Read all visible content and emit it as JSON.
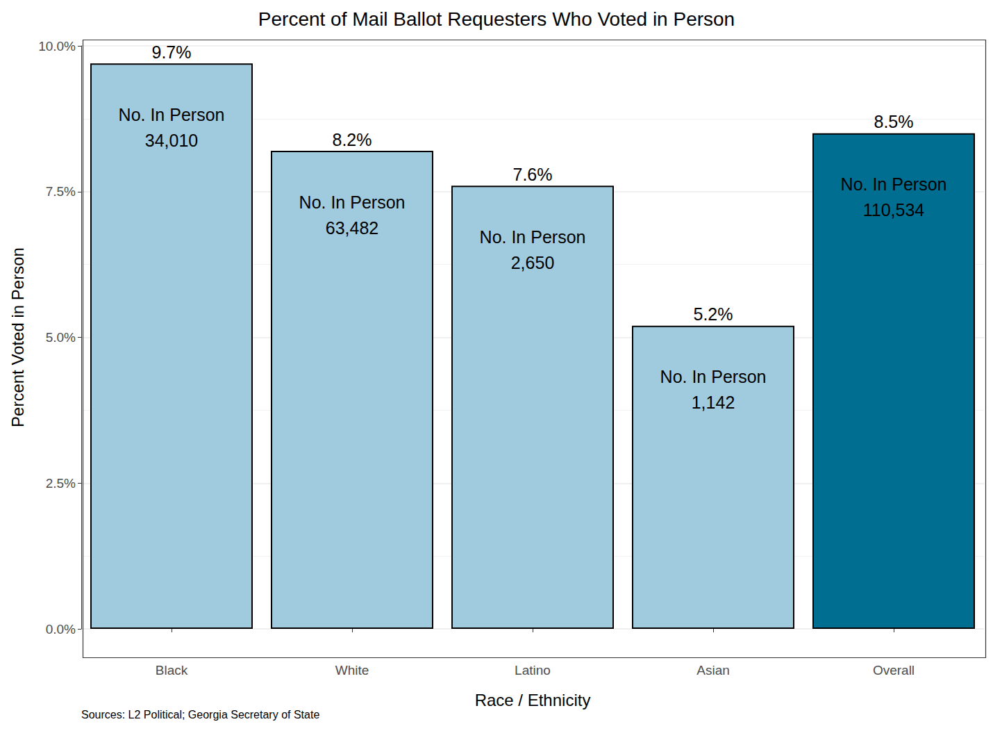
{
  "chart_data": {
    "type": "bar",
    "title": "Percent of Mail Ballot Requesters Who Voted in Person",
    "xlabel": "Race / Ethnicity",
    "ylabel": "Percent Voted in Person",
    "source": "Sources: L2 Political; Georgia Secretary of State",
    "categories": [
      "Black",
      "White",
      "Latino",
      "Asian",
      "Overall"
    ],
    "values": [
      9.7,
      8.2,
      7.6,
      5.2,
      8.5
    ],
    "value_labels": [
      "9.7%",
      "8.2%",
      "7.6%",
      "5.2%",
      "8.5%"
    ],
    "colors": [
      "#a0cbde",
      "#a0cbde",
      "#a0cbde",
      "#a0cbde",
      "#006e91"
    ],
    "in_person": {
      "label": "No. In Person",
      "values": [
        34010,
        63482,
        2650,
        1142,
        110534
      ],
      "value_labels": [
        "34,010",
        "63,482",
        "2,650",
        "1,142",
        "110,534"
      ]
    },
    "ylim": [
      0,
      10
    ],
    "yticks": [
      {
        "value": 0,
        "label": "0.0%"
      },
      {
        "value": 2.5,
        "label": "2.5%"
      },
      {
        "value": 5,
        "label": "5.0%"
      },
      {
        "value": 7.5,
        "label": "7.5%"
      },
      {
        "value": 10,
        "label": "10.0%"
      }
    ],
    "grid": true,
    "data_labels": true
  }
}
